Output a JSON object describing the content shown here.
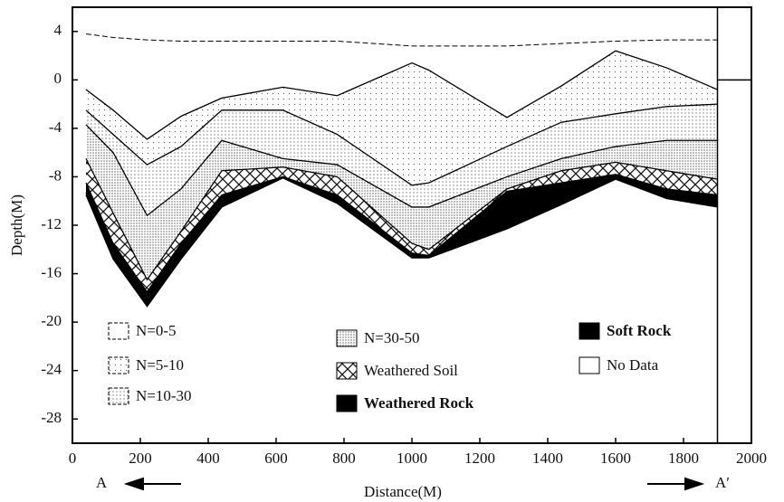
{
  "chart_data": {
    "type": "layers",
    "x_label": "Distance(M)",
    "y_label": "Depth(M)",
    "annotations": [
      "A",
      "A′"
    ],
    "xlim": [
      0,
      2000
    ],
    "xticks": [
      0,
      200,
      400,
      600,
      800,
      1000,
      1200,
      1400,
      1600,
      1800,
      2000
    ],
    "ylim": [
      -30,
      6
    ],
    "yticks": [
      4,
      0,
      -4,
      -8,
      -12,
      -16,
      -20,
      -24,
      -28
    ],
    "legend": "inside",
    "x": [
      40,
      120,
      220,
      320,
      440,
      620,
      780,
      1000,
      1050,
      1280,
      1440,
      1600,
      1750,
      1900
    ],
    "series": [
      {
        "name": "N=0-5",
        "color": "#ffffff",
        "pattern": "none",
        "values": [
          3.8,
          3.5,
          3.3,
          3.2,
          3.2,
          3.2,
          3.2,
          2.8,
          2.8,
          2.8,
          3.0,
          3.2,
          3.3,
          3.3
        ]
      },
      {
        "name": "N=5-10",
        "color": "#ffffff",
        "pattern": "dots-sparse",
        "values": [
          -0.8,
          -2.5,
          -4.9,
          -3,
          -1.5,
          -0.6,
          -1.3,
          1.4,
          0.8,
          -3.1,
          -0.5,
          2.4,
          1.0,
          -0.8
        ]
      },
      {
        "name": "N=10-30",
        "color": "#ffffff",
        "pattern": "dots",
        "values": [
          -2.5,
          -4.5,
          -7,
          -5.5,
          -2.5,
          -2.5,
          -4.5,
          -8.7,
          -8.5,
          -5.5,
          -3.5,
          -2.8,
          -2.2,
          -2
        ]
      },
      {
        "name": "N=30-50",
        "color": "#ffffff",
        "pattern": "dots-dense",
        "values": [
          -3.7,
          -6,
          -11.2,
          -9,
          -5,
          -6.5,
          -7,
          -10.5,
          -10.5,
          -8,
          -6.5,
          -5.5,
          -5,
          -5
        ]
      },
      {
        "name": "Weathered Soil",
        "color": "#ffffff",
        "pattern": "crosshatch",
        "values": [
          -6.5,
          -11,
          -16.5,
          -12.5,
          -7.5,
          -7.2,
          -8,
          -13.5,
          -14,
          -9,
          -7.5,
          -6.8,
          -7.5,
          -8.2
        ]
      },
      {
        "name": "Weathered Rock",
        "color": "#000000",
        "pattern": "none",
        "values": [
          -8.5,
          -13.5,
          -17.5,
          -13.5,
          -9.5,
          -8,
          -9.5,
          -14.3,
          -14.5,
          -9.2,
          -8.5,
          -7.8,
          -9,
          -9.5
        ]
      },
      {
        "name": "Soft Rock",
        "color": "#000000",
        "pattern": "none",
        "values": [
          -9.3,
          -14.5,
          -18.3,
          -14.5,
          -10.3,
          -8,
          -10,
          -14.6,
          -14.6,
          -12,
          -10,
          -8,
          -9.5,
          -10
        ]
      },
      {
        "name": "No Data",
        "color": "#ffffff",
        "pattern": "none",
        "values": [
          -9.5,
          -14.8,
          -18.7,
          -14.8,
          -10.5,
          -8.1,
          -10.2,
          -14.7,
          -14.7,
          -12.3,
          -10.3,
          -8.2,
          -9.8,
          -10.5
        ]
      }
    ]
  }
}
